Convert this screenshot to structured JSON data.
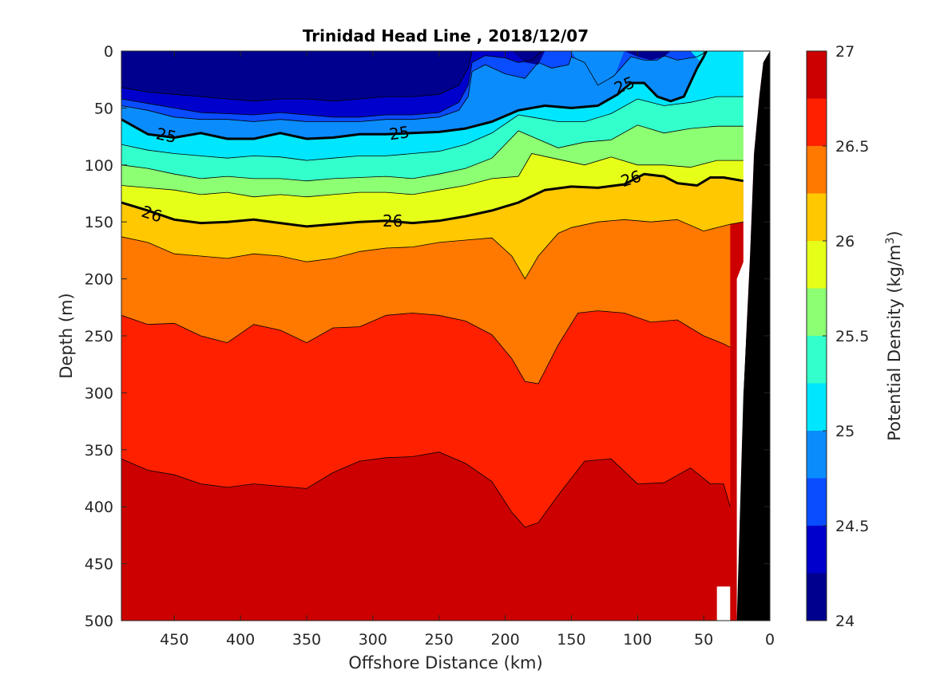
{
  "chart_data": {
    "type": "contourf",
    "title": "Trinidad Head Line , 2018/12/07",
    "xlabel": "Offshore Distance (km)",
    "ylabel": "Depth (m)",
    "colorbar_label": "Potential Density (kg/m",
    "colorbar_label_superscript": "3",
    "colorbar_label_suffix": ")",
    "x_reversed": true,
    "xlim": [
      0,
      490
    ],
    "x_ticks": [
      "450",
      "400",
      "350",
      "300",
      "250",
      "200",
      "150",
      "100",
      "50",
      "0"
    ],
    "y_reversed": true,
    "ylim": [
      0,
      500
    ],
    "y_ticks": [
      "0",
      "50",
      "100",
      "150",
      "200",
      "250",
      "300",
      "350",
      "400",
      "450",
      "500"
    ],
    "colorbar_range": [
      24,
      27
    ],
    "colorbar_ticks": [
      "24",
      "24.5",
      "25",
      "25.5",
      "26",
      "26.5",
      "27"
    ],
    "contour_levels": [
      24.25,
      24.5,
      24.75,
      25,
      25.25,
      25.5,
      25.75,
      26,
      26.25,
      26.5,
      26.75
    ],
    "level_colors": [
      "#00008f",
      "#0000cc",
      "#0a4cff",
      "#0b8cfc",
      "#00e6ff",
      "#33ffcc",
      "#8cff73",
      "#e6ff19",
      "#ffc800",
      "#ff7800",
      "#ff2000",
      "#cc0000"
    ],
    "labeled_isopycnals": [
      {
        "value": 25,
        "labels": [
          "25",
          "25",
          "25"
        ]
      },
      {
        "value": 26,
        "labels": [
          "26",
          "26",
          "26"
        ]
      }
    ],
    "isopycnal_25": {
      "x": [
        490,
        470,
        450,
        430,
        410,
        390,
        370,
        350,
        330,
        310,
        290,
        270,
        250,
        230,
        210,
        190,
        170,
        150,
        130,
        115,
        105,
        95,
        85,
        75,
        65,
        55,
        50,
        48
      ],
      "y": [
        60,
        73,
        76,
        72,
        77,
        77,
        72,
        77,
        76,
        73,
        73,
        72,
        71,
        68,
        62,
        52,
        48,
        50,
        48,
        38,
        28,
        28,
        40,
        44,
        40,
        15,
        5,
        0
      ]
    },
    "isopycnal_26": {
      "x": [
        490,
        470,
        450,
        430,
        410,
        390,
        370,
        350,
        330,
        310,
        290,
        270,
        250,
        230,
        210,
        190,
        170,
        150,
        130,
        110,
        95,
        80,
        70,
        55,
        45,
        35,
        25,
        20
      ],
      "y": [
        133,
        140,
        148,
        151,
        150,
        148,
        151,
        154,
        152,
        150,
        149,
        151,
        149,
        145,
        140,
        133,
        122,
        119,
        120,
        117,
        108,
        110,
        116,
        118,
        111,
        111,
        113,
        114
      ]
    },
    "isopycnal_26_25": {
      "x": [
        490,
        470,
        450,
        430,
        410,
        390,
        370,
        350,
        330,
        310,
        290,
        270,
        250,
        230,
        210,
        195,
        185,
        175,
        160,
        150,
        130,
        110,
        90,
        70,
        50,
        30,
        20
      ],
      "y": [
        163,
        168,
        178,
        180,
        182,
        178,
        180,
        185,
        182,
        176,
        173,
        172,
        168,
        166,
        164,
        180,
        200,
        180,
        160,
        155,
        150,
        148,
        150,
        148,
        158,
        152,
        150
      ]
    },
    "isopycnal_26_5": {
      "x": [
        490,
        470,
        450,
        430,
        410,
        390,
        370,
        350,
        330,
        310,
        290,
        270,
        250,
        230,
        210,
        195,
        185,
        175,
        160,
        145,
        130,
        110,
        90,
        70,
        50,
        35,
        30
      ],
      "y": [
        232,
        240,
        239,
        250,
        256,
        240,
        245,
        256,
        243,
        242,
        232,
        230,
        232,
        237,
        249,
        270,
        290,
        292,
        258,
        230,
        228,
        230,
        238,
        236,
        250,
        257,
        260
      ]
    },
    "isopycnal_26_75": {
      "x": [
        490,
        470,
        450,
        430,
        410,
        390,
        370,
        350,
        330,
        310,
        290,
        270,
        250,
        230,
        210,
        195,
        185,
        175,
        160,
        140,
        120,
        100,
        80,
        60,
        45,
        35,
        30
      ],
      "y": [
        358,
        368,
        372,
        380,
        383,
        380,
        382,
        384,
        370,
        360,
        357,
        356,
        352,
        362,
        378,
        405,
        418,
        414,
        390,
        360,
        358,
        380,
        379,
        366,
        380,
        380,
        400
      ]
    }
  }
}
